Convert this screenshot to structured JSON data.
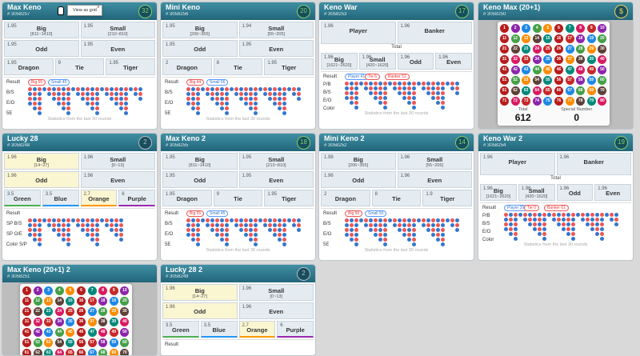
{
  "tooltip": {
    "label": "View as grid",
    "close": "×"
  },
  "colors": {
    "red": "#e55555",
    "blue": "#3377cc",
    "green": "#44bb44",
    "header": "#2b7186"
  },
  "cards": [
    {
      "title": "Max Keno",
      "id": "# 3058257",
      "count": "32",
      "r1": [
        {
          "o": "1.95",
          "n": "Big",
          "r": "[811~1410]"
        },
        {
          "o": "1.95",
          "n": "Small",
          "r": "[210~810]"
        }
      ],
      "r2": [
        {
          "o": "1.95",
          "n": "Odd"
        },
        {
          "o": "1.95",
          "n": "Even"
        }
      ],
      "r3": [
        {
          "o": "1.95",
          "n": "Dragon"
        },
        {
          "o": "9",
          "n": "Tie"
        },
        {
          "o": "1.95",
          "n": "Tiger"
        }
      ],
      "pills": [
        "Big 55",
        "Small 45"
      ],
      "labels": [
        "Result",
        "B/S",
        "E/O",
        "5E"
      ],
      "foot": "Statistics from the last 30 rounds"
    },
    {
      "title": "Mini Keno",
      "id": "# 3058256",
      "count": "20",
      "r1": [
        {
          "o": "1.95",
          "n": "Big",
          "r": "[206~355]"
        },
        {
          "o": "1.94",
          "n": "Small",
          "r": "[55~205]"
        }
      ],
      "r2": [
        {
          "o": "1.95",
          "n": "Odd"
        },
        {
          "o": "1.95",
          "n": "Even"
        }
      ],
      "r3": [
        {
          "o": "2",
          "n": "Dragon"
        },
        {
          "o": "8",
          "n": "Tie"
        },
        {
          "o": "1.95",
          "n": "Tiger"
        }
      ],
      "pills": [
        "Big 44",
        "Small 56"
      ],
      "labels": [
        "Result",
        "B/S",
        "E/O",
        "5E"
      ],
      "foot": "Statistics from the last 30 rounds"
    },
    {
      "title": "Keno War",
      "id": "# 3058253",
      "count": "17",
      "r1": [
        {
          "o": "1.96",
          "n": "Player"
        },
        {
          "o": "1.96",
          "n": "Banker"
        }
      ],
      "total": "Total",
      "r2": [
        {
          "o": "1.96",
          "n": "Big",
          "r": "[1621~2620]"
        },
        {
          "o": "1.96",
          "n": "Small",
          "r": "[420~1620]"
        },
        {
          "o": "1.96",
          "n": "Odd"
        },
        {
          "o": "1.96",
          "n": "Even"
        }
      ],
      "pills": [
        "Player 41",
        "Tie 6",
        "Banker 53"
      ],
      "labels": [
        "Result",
        "P/B",
        "B/S",
        "E/O",
        "Color"
      ],
      "foot": "Statistics from the last 30 rounds"
    },
    {
      "title": "Keno Max (20+1)",
      "id": "# 3058250",
      "count": "$",
      "overlay": {
        "total_label": "Total",
        "total": "612",
        "special_label": "Special Number",
        "special": "0"
      }
    },
    {
      "title": "Lucky 28",
      "id": "# 3058248",
      "count": "2",
      "r1": [
        {
          "o": "1.96",
          "n": "Big",
          "r": "[14~27]"
        },
        {
          "o": "1.96",
          "n": "Small",
          "r": "[0~13]"
        }
      ],
      "r2": [
        {
          "o": "1.96",
          "n": "Odd"
        },
        {
          "o": "1.96",
          "n": "Even"
        }
      ],
      "r3": [
        {
          "o": "3.5",
          "n": "Green"
        },
        {
          "o": "3.5",
          "n": "Blue"
        },
        {
          "o": "2.7",
          "n": "Orange"
        },
        {
          "o": "6",
          "n": "Purple"
        }
      ],
      "labels": [
        "Result",
        "SP B/S",
        "SP O/E",
        "Color S/P"
      ]
    },
    {
      "title": "Max Keno 2",
      "id": "# 3058255",
      "count": "18",
      "r1": [
        {
          "o": "1.95",
          "n": "Big",
          "r": "[811~1410]"
        },
        {
          "o": "1.95",
          "n": "Small",
          "r": "[210~810]"
        }
      ],
      "r2": [
        {
          "o": "1.95",
          "n": "Odd"
        },
        {
          "o": "1.95",
          "n": "Even"
        }
      ],
      "r3": [
        {
          "o": "1.95",
          "n": "Dragon"
        },
        {
          "o": "9",
          "n": "Tie"
        },
        {
          "o": "1.95",
          "n": "Tiger"
        }
      ],
      "pills": [
        "Big 55",
        "Small 45"
      ],
      "labels": [
        "Result",
        "B/S",
        "E/O",
        "5E"
      ],
      "foot": "Statistics from the last 30 rounds"
    },
    {
      "title": "Mini Keno 2",
      "id": "# 3058252",
      "count": "14",
      "r1": [
        {
          "o": "1.98",
          "n": "Big",
          "r": "[206~355]"
        },
        {
          "o": "1.96",
          "n": "Small",
          "r": "[55~205]"
        }
      ],
      "r2": [
        {
          "o": "1.96",
          "n": "Odd"
        },
        {
          "o": "1.96",
          "n": "Even"
        }
      ],
      "r3": [
        {
          "o": "2",
          "n": "Dragon"
        },
        {
          "o": "8",
          "n": "Tie"
        },
        {
          "o": "1.9",
          "n": "Tiger"
        }
      ],
      "pills": [
        "Big 50",
        "Small 50"
      ],
      "labels": [
        "Result",
        "B/S",
        "E/O",
        "5E"
      ],
      "foot": "Statistics from the last 30 rounds"
    },
    {
      "title": "Keno War 2",
      "id": "# 3058254",
      "count": "19",
      "r1": [
        {
          "o": "1.96",
          "n": "Player"
        },
        {
          "o": "1.96",
          "n": "Banker"
        }
      ],
      "total": "Total",
      "r2": [
        {
          "o": "1.96",
          "n": "Big",
          "r": "[1621~2620]"
        },
        {
          "o": "1.96",
          "n": "Small",
          "r": "[420~1620]"
        },
        {
          "o": "1.96",
          "n": "Odd"
        },
        {
          "o": "1.96",
          "n": "Even"
        }
      ],
      "pills": [
        "Player 39",
        "Tie 0",
        "Banker 61"
      ],
      "labels": [
        "Result",
        "P/B",
        "B/S",
        "E/O",
        "Color"
      ],
      "foot": "Statistics from the last 30 rounds"
    },
    {
      "title": "Max Keno (20+1) 2",
      "id": "# 3058251",
      "count": ""
    },
    {
      "title": "Lucky 28 2",
      "id": "# 3058249",
      "count": "2",
      "r1": [
        {
          "o": "1.96",
          "n": "Big",
          "r": "[14~27]"
        },
        {
          "o": "1.96",
          "n": "Small",
          "r": "[0~13]"
        }
      ],
      "r2": [
        {
          "o": "1.96",
          "n": "Odd"
        },
        {
          "o": "1.96",
          "n": "Even"
        }
      ],
      "r3": [
        {
          "o": "3.5",
          "n": "Green"
        },
        {
          "o": "3.5",
          "n": "Blue"
        },
        {
          "o": "2.7",
          "n": "Orange"
        },
        {
          "o": "6",
          "n": "Purple"
        }
      ],
      "labels": [
        "Result"
      ]
    }
  ],
  "grid_numbers": [
    "1",
    "2",
    "3",
    "4",
    "5",
    "6",
    "7",
    "8",
    "9",
    "10",
    "11",
    "12",
    "13",
    "14",
    "15",
    "16",
    "17",
    "18",
    "19",
    "20",
    "21",
    "22",
    "23",
    "24",
    "25",
    "26",
    "27",
    "28",
    "29",
    "30",
    "31",
    "32",
    "33",
    "34",
    "35",
    "36",
    "37",
    "38",
    "39",
    "40",
    "41",
    "42",
    "43",
    "44",
    "45",
    "46",
    "47",
    "48",
    "49",
    "50",
    "51",
    "52",
    "53",
    "54",
    "55",
    "56",
    "57",
    "58",
    "59",
    "60",
    "61",
    "62",
    "63",
    "64",
    "65",
    "66",
    "67",
    "68",
    "69",
    "70",
    "71",
    "72",
    "73",
    "74",
    "75",
    "76",
    "77",
    "78",
    "79",
    "80"
  ]
}
